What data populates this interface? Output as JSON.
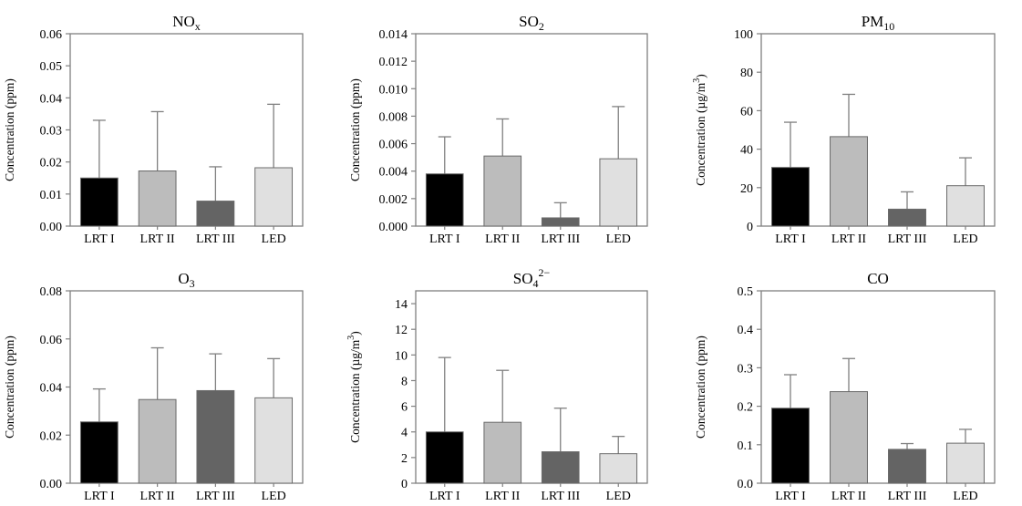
{
  "chart_data": [
    {
      "type": "bar",
      "title": "NOx",
      "title_main": "NO",
      "title_sub": "x",
      "title_sup": "",
      "ylabel": "Concentration (ppm)",
      "ylabel_sup": "",
      "ylabel_tail": "",
      "ylim": [
        0,
        0.06
      ],
      "yticks": [
        "0.00",
        "0.01",
        "0.02",
        "0.03",
        "0.04",
        "0.05",
        "0.06"
      ],
      "categories": [
        "LRT I",
        "LRT II",
        "LRT III",
        "LED"
      ],
      "values": [
        0.015,
        0.0172,
        0.0078,
        0.0182
      ],
      "errors": [
        0.018,
        0.0185,
        0.0107,
        0.0198
      ],
      "colors": [
        "#000000",
        "#bcbcbc",
        "#646464",
        "#e0e0e0"
      ]
    },
    {
      "type": "bar",
      "title": "SO2",
      "title_main": "SO",
      "title_sub": "2",
      "title_sup": "",
      "ylabel": "Concentration (ppm)",
      "ylabel_sup": "",
      "ylabel_tail": "",
      "ylim": [
        0,
        0.014
      ],
      "yticks": [
        "0.000",
        "0.002",
        "0.004",
        "0.006",
        "0.008",
        "0.010",
        "0.012",
        "0.014"
      ],
      "categories": [
        "LRT I",
        "LRT II",
        "LRT III",
        "LED"
      ],
      "values": [
        0.0038,
        0.0051,
        0.0006,
        0.0049
      ],
      "errors": [
        0.0027,
        0.0027,
        0.0011,
        0.0038
      ],
      "colors": [
        "#000000",
        "#bcbcbc",
        "#646464",
        "#e0e0e0"
      ]
    },
    {
      "type": "bar",
      "title": "PM10",
      "title_main": "PM",
      "title_sub": "10",
      "title_sup": "",
      "ylabel": "Concentration (µg/m3)",
      "ylabel_sup": "3",
      "ylabel_tail": ")",
      "ylabel_main": "Concentration (µg/m",
      "ylim": [
        0,
        100
      ],
      "yticks": [
        "0",
        "20",
        "40",
        "60",
        "80",
        "100"
      ],
      "categories": [
        "LRT I",
        "LRT II",
        "LRT III",
        "LED"
      ],
      "values": [
        30.5,
        46.5,
        8.8,
        21.0
      ],
      "errors": [
        23.5,
        22.0,
        9.0,
        14.5
      ],
      "colors": [
        "#000000",
        "#bcbcbc",
        "#646464",
        "#e0e0e0"
      ]
    },
    {
      "type": "bar",
      "title": "O3",
      "title_main": "O",
      "title_sub": "3",
      "title_sup": "",
      "ylabel": "Concentration (ppm)",
      "ylabel_sup": "",
      "ylabel_tail": "",
      "ylim": [
        0,
        0.08
      ],
      "yticks": [
        "0.00",
        "0.02",
        "0.04",
        "0.06",
        "0.08"
      ],
      "categories": [
        "LRT I",
        "LRT II",
        "LRT III",
        "LED"
      ],
      "values": [
        0.0255,
        0.0348,
        0.0385,
        0.0355
      ],
      "errors": [
        0.0137,
        0.0215,
        0.0153,
        0.0163
      ],
      "colors": [
        "#000000",
        "#bcbcbc",
        "#646464",
        "#e0e0e0"
      ]
    },
    {
      "type": "bar",
      "title": "SO42−",
      "title_main": "SO",
      "title_sub": "4",
      "title_sup": "2−",
      "ylabel": "Concentration (µg/m3)",
      "ylabel_sup": "3",
      "ylabel_tail": ")",
      "ylabel_main": "Concentration (µg/m",
      "ylim": [
        0,
        15
      ],
      "yticks": [
        "0",
        "2",
        "4",
        "6",
        "8",
        "10",
        "12",
        "14"
      ],
      "categories": [
        "LRT I",
        "LRT II",
        "LRT III",
        "LED"
      ],
      "values": [
        4.0,
        4.75,
        2.45,
        2.3
      ],
      "errors": [
        5.8,
        4.05,
        3.4,
        1.35
      ],
      "colors": [
        "#000000",
        "#bcbcbc",
        "#646464",
        "#e0e0e0"
      ]
    },
    {
      "type": "bar",
      "title": "CO",
      "title_main": "CO",
      "title_sub": "",
      "title_sup": "",
      "ylabel": "Concentration (ppm)",
      "ylabel_sup": "",
      "ylabel_tail": "",
      "ylim": [
        0,
        0.5
      ],
      "yticks": [
        "0.0",
        "0.1",
        "0.2",
        "0.3",
        "0.4",
        "0.5"
      ],
      "categories": [
        "LRT I",
        "LRT II",
        "LRT III",
        "LED"
      ],
      "values": [
        0.195,
        0.238,
        0.088,
        0.104
      ],
      "errors": [
        0.087,
        0.086,
        0.015,
        0.036
      ],
      "colors": [
        "#000000",
        "#bcbcbc",
        "#646464",
        "#e0e0e0"
      ]
    }
  ]
}
